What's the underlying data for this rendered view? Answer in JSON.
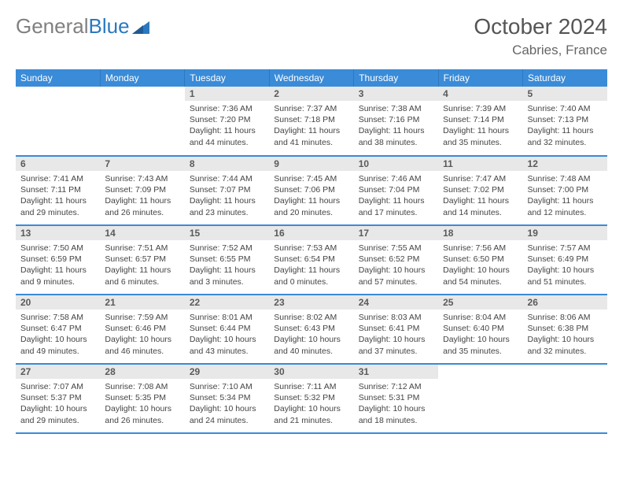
{
  "brand": {
    "part1": "General",
    "part2": "Blue",
    "logo_color": "#2a79c0"
  },
  "title": {
    "month": "October 2024",
    "location": "Cabries, France"
  },
  "header_bg": "#3a8bd8",
  "daynum_bg": "#e8e8e8",
  "dow": [
    "Sunday",
    "Monday",
    "Tuesday",
    "Wednesday",
    "Thursday",
    "Friday",
    "Saturday"
  ],
  "weeks": [
    [
      null,
      null,
      {
        "n": "1",
        "sr": "7:36 AM",
        "ss": "7:20 PM",
        "dl": "11 hours and 44 minutes."
      },
      {
        "n": "2",
        "sr": "7:37 AM",
        "ss": "7:18 PM",
        "dl": "11 hours and 41 minutes."
      },
      {
        "n": "3",
        "sr": "7:38 AM",
        "ss": "7:16 PM",
        "dl": "11 hours and 38 minutes."
      },
      {
        "n": "4",
        "sr": "7:39 AM",
        "ss": "7:14 PM",
        "dl": "11 hours and 35 minutes."
      },
      {
        "n": "5",
        "sr": "7:40 AM",
        "ss": "7:13 PM",
        "dl": "11 hours and 32 minutes."
      }
    ],
    [
      {
        "n": "6",
        "sr": "7:41 AM",
        "ss": "7:11 PM",
        "dl": "11 hours and 29 minutes."
      },
      {
        "n": "7",
        "sr": "7:43 AM",
        "ss": "7:09 PM",
        "dl": "11 hours and 26 minutes."
      },
      {
        "n": "8",
        "sr": "7:44 AM",
        "ss": "7:07 PM",
        "dl": "11 hours and 23 minutes."
      },
      {
        "n": "9",
        "sr": "7:45 AM",
        "ss": "7:06 PM",
        "dl": "11 hours and 20 minutes."
      },
      {
        "n": "10",
        "sr": "7:46 AM",
        "ss": "7:04 PM",
        "dl": "11 hours and 17 minutes."
      },
      {
        "n": "11",
        "sr": "7:47 AM",
        "ss": "7:02 PM",
        "dl": "11 hours and 14 minutes."
      },
      {
        "n": "12",
        "sr": "7:48 AM",
        "ss": "7:00 PM",
        "dl": "11 hours and 12 minutes."
      }
    ],
    [
      {
        "n": "13",
        "sr": "7:50 AM",
        "ss": "6:59 PM",
        "dl": "11 hours and 9 minutes."
      },
      {
        "n": "14",
        "sr": "7:51 AM",
        "ss": "6:57 PM",
        "dl": "11 hours and 6 minutes."
      },
      {
        "n": "15",
        "sr": "7:52 AM",
        "ss": "6:55 PM",
        "dl": "11 hours and 3 minutes."
      },
      {
        "n": "16",
        "sr": "7:53 AM",
        "ss": "6:54 PM",
        "dl": "11 hours and 0 minutes."
      },
      {
        "n": "17",
        "sr": "7:55 AM",
        "ss": "6:52 PM",
        "dl": "10 hours and 57 minutes."
      },
      {
        "n": "18",
        "sr": "7:56 AM",
        "ss": "6:50 PM",
        "dl": "10 hours and 54 minutes."
      },
      {
        "n": "19",
        "sr": "7:57 AM",
        "ss": "6:49 PM",
        "dl": "10 hours and 51 minutes."
      }
    ],
    [
      {
        "n": "20",
        "sr": "7:58 AM",
        "ss": "6:47 PM",
        "dl": "10 hours and 49 minutes."
      },
      {
        "n": "21",
        "sr": "7:59 AM",
        "ss": "6:46 PM",
        "dl": "10 hours and 46 minutes."
      },
      {
        "n": "22",
        "sr": "8:01 AM",
        "ss": "6:44 PM",
        "dl": "10 hours and 43 minutes."
      },
      {
        "n": "23",
        "sr": "8:02 AM",
        "ss": "6:43 PM",
        "dl": "10 hours and 40 minutes."
      },
      {
        "n": "24",
        "sr": "8:03 AM",
        "ss": "6:41 PM",
        "dl": "10 hours and 37 minutes."
      },
      {
        "n": "25",
        "sr": "8:04 AM",
        "ss": "6:40 PM",
        "dl": "10 hours and 35 minutes."
      },
      {
        "n": "26",
        "sr": "8:06 AM",
        "ss": "6:38 PM",
        "dl": "10 hours and 32 minutes."
      }
    ],
    [
      {
        "n": "27",
        "sr": "7:07 AM",
        "ss": "5:37 PM",
        "dl": "10 hours and 29 minutes."
      },
      {
        "n": "28",
        "sr": "7:08 AM",
        "ss": "5:35 PM",
        "dl": "10 hours and 26 minutes."
      },
      {
        "n": "29",
        "sr": "7:10 AM",
        "ss": "5:34 PM",
        "dl": "10 hours and 24 minutes."
      },
      {
        "n": "30",
        "sr": "7:11 AM",
        "ss": "5:32 PM",
        "dl": "10 hours and 21 minutes."
      },
      {
        "n": "31",
        "sr": "7:12 AM",
        "ss": "5:31 PM",
        "dl": "10 hours and 18 minutes."
      },
      null,
      null
    ]
  ],
  "labels": {
    "sunrise": "Sunrise: ",
    "sunset": "Sunset: ",
    "daylight": "Daylight: "
  }
}
